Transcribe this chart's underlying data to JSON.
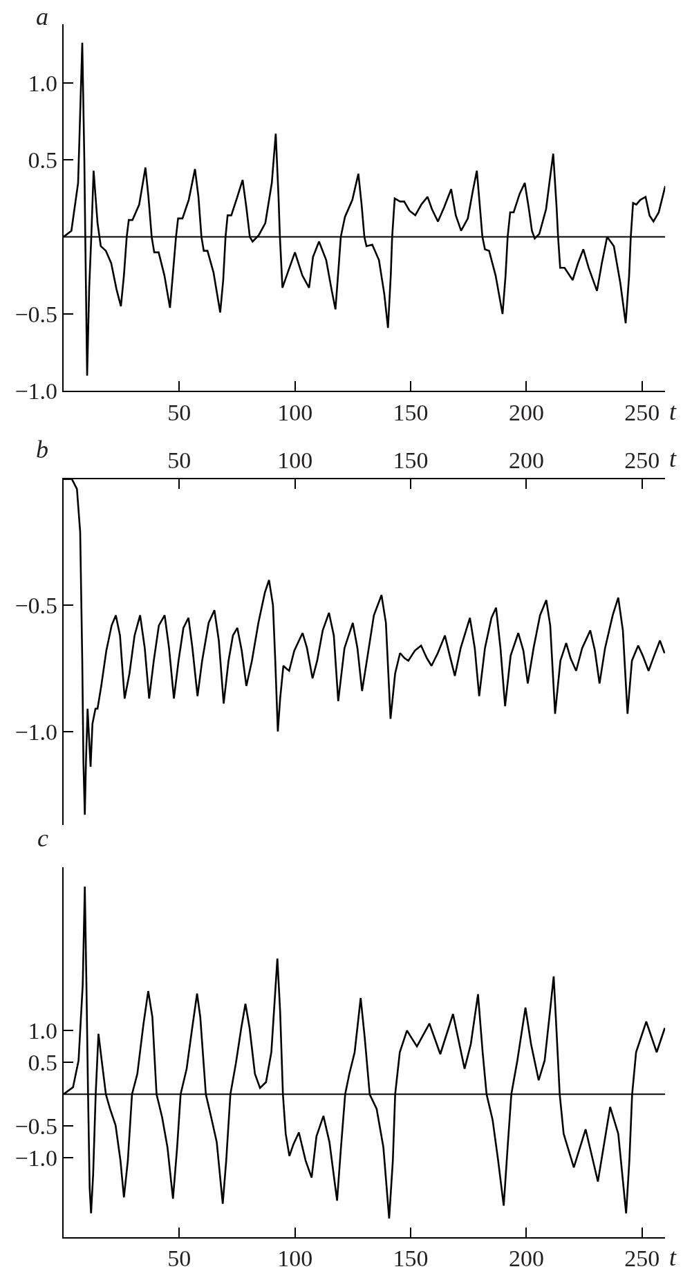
{
  "chart_data": [
    {
      "type": "line",
      "title": "a",
      "xlabel": "t",
      "marker": "none",
      "line_style": "solid",
      "xlim": [
        0,
        260
      ],
      "xticks": [
        50,
        100,
        150,
        200,
        250
      ],
      "ylim": [
        -1.0,
        1.38
      ],
      "yticks": [
        {
          "value": -1.0,
          "label": "−1.0"
        },
        {
          "value": -0.5,
          "label": "−0.5"
        },
        {
          "value": 0.5,
          "label": "0.5"
        },
        {
          "value": 1.0,
          "label": "1.0"
        }
      ],
      "ref_lines": [
        {
          "axis": "y",
          "value": 0,
          "color": "#000000"
        }
      ],
      "series": [
        {
          "color": "#000000",
          "x": [
            0,
            3.4,
            6.3,
            8.1,
            9,
            9.4,
            10.2,
            11.1,
            12,
            13,
            14.7,
            16.1,
            18.3,
            20.6,
            22.9,
            24.8,
            26.1,
            27.3,
            28.2,
            29.8,
            32.7,
            35.4,
            36.7,
            38.1,
            39.2,
            41.1,
            43.6,
            46,
            47.2,
            48.6,
            49.5,
            51.4,
            54.1,
            56.8,
            58.3,
            59.6,
            60.6,
            62.2,
            64.8,
            67.7,
            69,
            70,
            70.9,
            72.5,
            75.1,
            77.4,
            79.1,
            80.5,
            81.7,
            84.3,
            87.2,
            90,
            91.7,
            92.9,
            93.5,
            94.6,
            96.9,
            100,
            103.2,
            106.1,
            107.8,
            110.4,
            113.5,
            115.8,
            117.5,
            119,
            119.8,
            121.6,
            124.8,
            127.4,
            128.8,
            130,
            130.9,
            133.4,
            136.3,
            138.6,
            140.2,
            141.4,
            142,
            143.1,
            145.4,
            147.2,
            149.5,
            152,
            154.6,
            157.3,
            159.2,
            161.8,
            164.4,
            167.5,
            169.5,
            171.8,
            174.7,
            177,
            178.6,
            180,
            181,
            182.1,
            183.9,
            186.7,
            189.7,
            191,
            191.9,
            193,
            194.5,
            197.1,
            199.3,
            201.1,
            202.4,
            203.6,
            205.6,
            208.5,
            210.2,
            211.6,
            213.1,
            213.7,
            214.6,
            216.5,
            220,
            222.3,
            224.6,
            226.9,
            230.5,
            232.6,
            234.9,
            237.8,
            240.6,
            242.9,
            244.4,
            245.1,
            246.1,
            247.5,
            249.2,
            251.5,
            253.2,
            254.9,
            257.2,
            260
          ],
          "values": [
            0,
            0.04,
            0.35,
            1.26,
            0.5,
            0,
            -0.9,
            -0.33,
            0,
            0.43,
            0.09,
            -0.06,
            -0.09,
            -0.17,
            -0.34,
            -0.45,
            -0.25,
            0,
            0.11,
            0.11,
            0.21,
            0.45,
            0.26,
            0,
            -0.1,
            -0.1,
            -0.25,
            -0.46,
            -0.25,
            0,
            0.12,
            0.12,
            0.24,
            0.44,
            0.26,
            0,
            -0.09,
            -0.09,
            -0.23,
            -0.49,
            -0.28,
            0,
            0.14,
            0.14,
            0.26,
            0.37,
            0.18,
            0,
            -0.03,
            0.01,
            0.09,
            0.35,
            0.67,
            0.26,
            0,
            -0.33,
            -0.23,
            -0.1,
            -0.25,
            -0.33,
            -0.13,
            -0.03,
            -0.15,
            -0.34,
            -0.47,
            -0.17,
            0,
            0.13,
            0.24,
            0.41,
            0.21,
            0,
            -0.06,
            -0.05,
            -0.15,
            -0.37,
            -0.59,
            -0.25,
            0,
            0.25,
            0.23,
            0.23,
            0.17,
            0.14,
            0.21,
            0.26,
            0.18,
            0.1,
            0.19,
            0.31,
            0.14,
            0.04,
            0.12,
            0.31,
            0.43,
            0.18,
            0,
            -0.08,
            -0.09,
            -0.25,
            -0.5,
            -0.25,
            0,
            0.16,
            0.16,
            0.28,
            0.35,
            0.18,
            0.04,
            -0.01,
            0.02,
            0.18,
            0.38,
            0.54,
            0.18,
            0,
            -0.2,
            -0.2,
            -0.28,
            -0.17,
            -0.08,
            -0.2,
            -0.35,
            -0.17,
            0,
            -0.06,
            -0.3,
            -0.56,
            -0.25,
            0,
            0.22,
            0.21,
            0.24,
            0.26,
            0.14,
            0.1,
            0.16,
            0.33
          ]
        }
      ]
    },
    {
      "type": "line",
      "title": "b",
      "xlabel": "t",
      "marker": "none",
      "line_style": "solid",
      "xlim": [
        0,
        260
      ],
      "xticks": [
        50,
        100,
        150,
        200,
        250
      ],
      "ylim": [
        -1.37,
        0
      ],
      "yticks": [
        {
          "value": -1.0,
          "label": "−1.0"
        },
        {
          "value": -0.5,
          "label": "−0.5"
        }
      ],
      "series": [
        {
          "color": "#000000",
          "x": [
            0,
            3.6,
            5.8,
            7.2,
            8.1,
            8.6,
            9.2,
            9.7,
            10.4,
            11,
            11.7,
            12.5,
            13.8,
            14.7,
            16.3,
            18.5,
            20.8,
            22.6,
            24.4,
            26.4,
            28.5,
            30.7,
            33.1,
            35.1,
            37,
            39,
            41.2,
            43.7,
            45.6,
            47.7,
            49.7,
            51.8,
            54,
            55.7,
            57.9,
            59.9,
            62.7,
            65.2,
            67.1,
            69.2,
            71.3,
            73.2,
            75.1,
            77,
            79,
            81.4,
            84.2,
            87,
            88.8,
            90.5,
            91.5,
            92.6,
            93.6,
            95,
            96.1,
            97.5,
            99.7,
            103.3,
            105.2,
            107.6,
            109.6,
            112,
            114.7,
            116.8,
            118.7,
            121.4,
            125,
            127,
            129,
            131.4,
            134.1,
            137.4,
            139.3,
            141.3,
            143.3,
            145.4,
            147.4,
            149,
            151.8,
            154.5,
            157,
            159,
            161.7,
            164.8,
            166.9,
            169.1,
            171.6,
            175.6,
            177.7,
            179.6,
            182.1,
            184.9,
            186.9,
            188.8,
            190.8,
            193.2,
            196.5,
            198.7,
            200.6,
            203.1,
            205.9,
            208.6,
            210.3,
            212.4,
            214.7,
            217.2,
            219.1,
            221.5,
            224.1,
            227.6,
            229.6,
            231.6,
            234,
            237.3,
            239.7,
            241.7,
            243.7,
            245.6,
            248.3,
            250.3,
            252.8,
            255.2,
            257.7,
            259.7
          ],
          "values": [
            0,
            0,
            -0.04,
            -0.21,
            -0.72,
            -1.12,
            -1.33,
            -1.12,
            -0.91,
            -1.02,
            -1.14,
            -0.97,
            -0.91,
            -0.91,
            -0.82,
            -0.68,
            -0.58,
            -0.54,
            -0.62,
            -0.87,
            -0.77,
            -0.62,
            -0.54,
            -0.67,
            -0.87,
            -0.72,
            -0.58,
            -0.54,
            -0.67,
            -0.87,
            -0.72,
            -0.59,
            -0.55,
            -0.67,
            -0.86,
            -0.72,
            -0.57,
            -0.52,
            -0.64,
            -0.89,
            -0.72,
            -0.62,
            -0.59,
            -0.68,
            -0.82,
            -0.72,
            -0.57,
            -0.45,
            -0.4,
            -0.5,
            -0.72,
            -1.0,
            -0.87,
            -0.74,
            -0.75,
            -0.76,
            -0.68,
            -0.61,
            -0.67,
            -0.79,
            -0.72,
            -0.6,
            -0.53,
            -0.62,
            -0.88,
            -0.67,
            -0.57,
            -0.67,
            -0.84,
            -0.7,
            -0.54,
            -0.46,
            -0.57,
            -0.95,
            -0.77,
            -0.69,
            -0.71,
            -0.72,
            -0.68,
            -0.66,
            -0.71,
            -0.74,
            -0.69,
            -0.62,
            -0.7,
            -0.78,
            -0.67,
            -0.55,
            -0.67,
            -0.86,
            -0.67,
            -0.55,
            -0.51,
            -0.67,
            -0.9,
            -0.7,
            -0.61,
            -0.68,
            -0.81,
            -0.67,
            -0.54,
            -0.48,
            -0.58,
            -0.93,
            -0.72,
            -0.65,
            -0.71,
            -0.76,
            -0.67,
            -0.6,
            -0.68,
            -0.81,
            -0.67,
            -0.54,
            -0.47,
            -0.6,
            -0.93,
            -0.72,
            -0.66,
            -0.7,
            -0.76,
            -0.7,
            -0.64,
            -0.69
          ]
        }
      ]
    },
    {
      "type": "line",
      "title": "c",
      "xlabel": "t",
      "marker": "none",
      "line_style": "solid",
      "xlim": [
        0,
        260
      ],
      "xticks": [
        50,
        100,
        150,
        200,
        250
      ],
      "ylim": [
        -2.24,
        3.56
      ],
      "yticks": [
        {
          "value": -1.0,
          "label": "−1.0"
        },
        {
          "value": -0.5,
          "label": "−0.5"
        },
        {
          "value": 0.5,
          "label": "0.5"
        },
        {
          "value": 1.0,
          "label": "1.0"
        }
      ],
      "ref_lines": [
        {
          "axis": "y",
          "value": 0,
          "color": "#000000"
        }
      ],
      "series": [
        {
          "color": "#000000",
          "x": [
            0,
            4.1,
            6.5,
            8.3,
            9.2,
            9.9,
            10.6,
            11.3,
            11.9,
            12.8,
            13.9,
            15.1,
            16.5,
            18.3,
            20.1,
            22.5,
            24.6,
            26.1,
            27.8,
            29.6,
            31.9,
            34.5,
            36.6,
            38.4,
            40.2,
            42.6,
            44.9,
            47.3,
            49.1,
            50.6,
            53.2,
            55.6,
            57.7,
            59.1,
            61.5,
            63.8,
            66.2,
            68.8,
            70.3,
            72.1,
            74.5,
            76.8,
            78.6,
            80.4,
            82.7,
            84.9,
            87.5,
            89.8,
            92.4,
            93.6,
            94.8,
            96,
            97.6,
            99.3,
            101.7,
            104.6,
            107.2,
            109.3,
            112.3,
            114.9,
            118.2,
            119.9,
            121.7,
            123.5,
            125.8,
            128.4,
            130.2,
            132.3,
            135.3,
            138.2,
            140.7,
            142.3,
            143.3,
            145.3,
            148.4,
            152.7,
            158.1,
            162.8,
            168.3,
            173.3,
            176,
            179.1,
            181.1,
            182.8,
            185.4,
            187.8,
            190.2,
            191.9,
            193.5,
            196.1,
            199.6,
            202,
            205.3,
            207.9,
            210.2,
            211.8,
            213.2,
            214.4,
            216.1,
            220.5,
            225.6,
            230.9,
            236.2,
            239.7,
            243.1,
            244.5,
            245.7,
            247.4,
            251.8,
            256.3,
            259.8
          ],
          "values": [
            0,
            0.11,
            0.53,
            1.72,
            3.26,
            1.72,
            0,
            -1.47,
            -1.87,
            -1.26,
            0,
            0.95,
            0.53,
            0,
            -0.23,
            -0.49,
            -1.04,
            -1.62,
            -1.04,
            0,
            0.32,
            1.09,
            1.62,
            1.21,
            0,
            -0.36,
            -0.83,
            -1.64,
            -0.83,
            0,
            0.4,
            1.04,
            1.58,
            1.21,
            0,
            -0.36,
            -0.75,
            -1.72,
            -1.04,
            0,
            0.49,
            1.04,
            1.42,
            1.04,
            0.32,
            0.1,
            0.19,
            0.66,
            2.13,
            1.3,
            0,
            -0.62,
            -0.97,
            -0.79,
            -0.6,
            -1.04,
            -1.31,
            -0.66,
            -0.34,
            -0.75,
            -1.67,
            -0.83,
            0,
            0.32,
            0.66,
            1.51,
            0.87,
            0,
            -0.23,
            -0.83,
            -1.95,
            -1.04,
            0,
            0.66,
            1.0,
            0.75,
            1.11,
            0.63,
            1.26,
            0.4,
            0.79,
            1.57,
            0.66,
            0,
            -0.4,
            -1.04,
            -1.75,
            -0.83,
            0,
            0.53,
            1.36,
            0.79,
            0.22,
            0.53,
            1.3,
            1.85,
            0.87,
            0,
            -0.62,
            -1.15,
            -0.55,
            -1.37,
            -0.2,
            -0.62,
            -1.87,
            -1.04,
            0,
            0.66,
            1.14,
            0.66,
            1.04
          ]
        }
      ]
    }
  ]
}
